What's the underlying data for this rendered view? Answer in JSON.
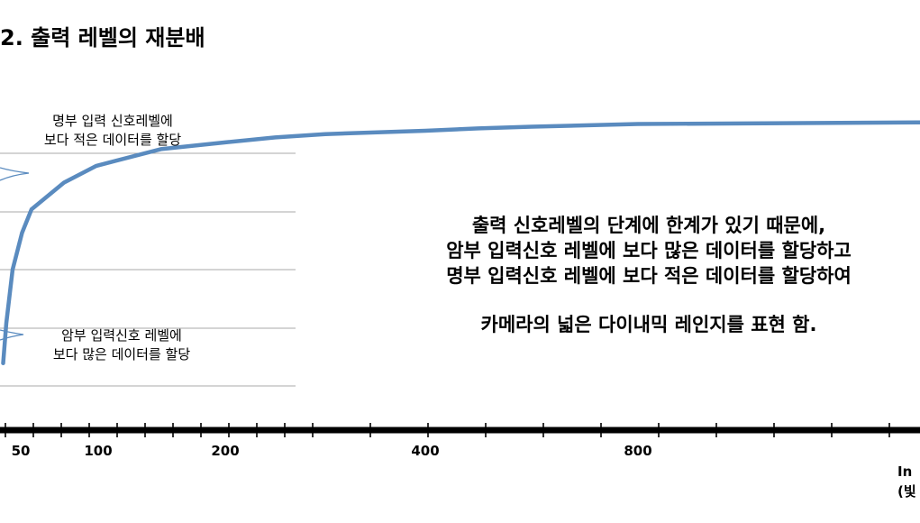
{
  "chart_data": {
    "type": "line",
    "title": "2. 출력 레벨의 재분배",
    "x_tick_labels": [
      "50",
      "100",
      "200",
      "400",
      "800"
    ],
    "x_unit_lines": [
      "In",
      "(빛"
    ],
    "series": [
      {
        "color": "#5a8bbf",
        "points": [
          [
            5,
            0.2
          ],
          [
            10,
            0.32
          ],
          [
            20,
            0.48
          ],
          [
            35,
            0.59
          ],
          [
            50,
            0.66
          ],
          [
            75,
            0.74
          ],
          [
            100,
            0.79
          ],
          [
            150,
            0.84
          ],
          [
            200,
            0.86
          ],
          [
            250,
            0.875
          ],
          [
            300,
            0.885
          ],
          [
            400,
            0.895
          ],
          [
            500,
            0.902
          ],
          [
            600,
            0.907
          ],
          [
            800,
            0.915
          ],
          [
            1000,
            0.92
          ]
        ]
      }
    ],
    "xlim": [
      0,
      1000
    ],
    "ylim": [
      0,
      1
    ],
    "grid": true,
    "annotations": {
      "dark_region": [
        "명부 입력 신호레벨에",
        "보다 적은 데이터를 할당"
      ],
      "bright_region": [
        "암부 입력신호 레벨에",
        "보다 많은 데이터를 할당"
      ],
      "explanation": [
        "출력 신호레벨의 단계에  한계가 있기 때문에,",
        "암부 입력신호 레벨에 보다 많은 데이터를 할당하고",
        "명부 입력신호 레벨에 보다 적은 데이터를 할당하여",
        "",
        "카메라의 넓은 다이내믹 레인지를 표현 함."
      ]
    }
  }
}
